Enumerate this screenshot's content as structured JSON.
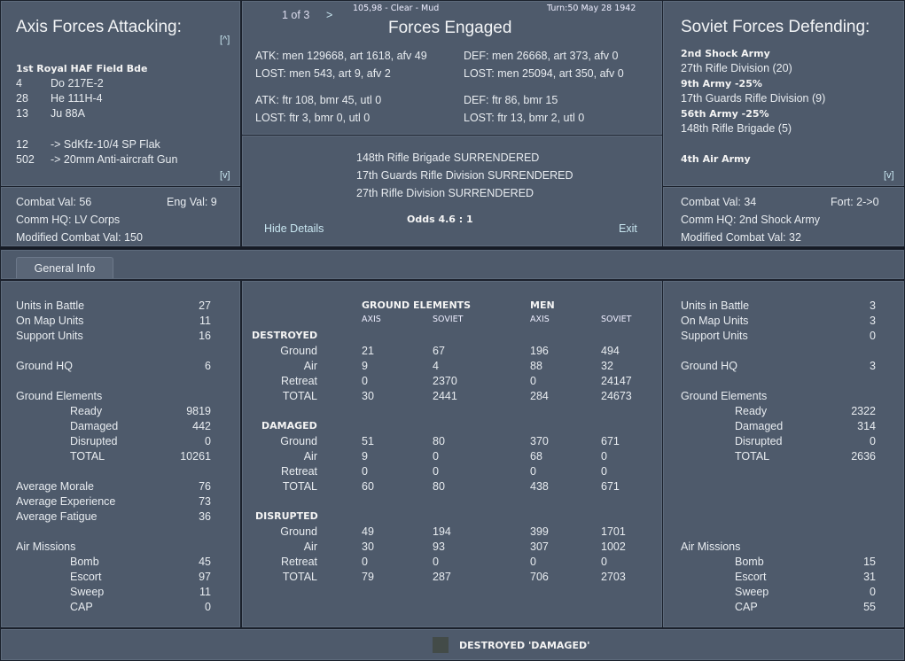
{
  "header": {
    "page": "1 of 3",
    "next": ">",
    "location": "105,98 - Clear - Mud",
    "turn": "Turn:50  May 28 1942",
    "title": "Forces Engaged"
  },
  "attacker": {
    "title": "Axis Forces Attacking:",
    "scroll_up": "[^]",
    "scroll_down": "[v]",
    "unit": "1st Royal HAF Field Bde",
    "elements": [
      [
        "4",
        "Do 217E-2"
      ],
      [
        "28",
        "He 111H-4"
      ],
      [
        "13",
        "Ju 88A"
      ],
      [
        "12",
        "-> SdKfz-10/4 SP Flak"
      ],
      [
        "502",
        "-> 20mm Anti-aircraft Gun"
      ]
    ],
    "combat_val": "Combat Val: 56",
    "eng_val": "Eng Val: 9",
    "comm_hq": "Comm HQ: LV Corps",
    "modified": "Modified Combat Val: 150"
  },
  "defender": {
    "title": "Soviet Forces Defending:",
    "scroll_down": "[v]",
    "lines": [
      [
        "2nd Shock Army",
        true
      ],
      [
        "27th Rifle Division (20)",
        false
      ],
      [
        "9th Army  -25%",
        true
      ],
      [
        "17th Guards Rifle Division (9)",
        false
      ],
      [
        "56th Army  -25%",
        true
      ],
      [
        "148th Rifle Brigade (5)",
        false
      ],
      [
        "",
        false
      ],
      [
        "4th Air Army",
        true
      ]
    ],
    "combat_val": "Combat Val: 34",
    "fort": "Fort: 2->0",
    "comm_hq": "Comm HQ: 2nd Shock Army",
    "modified": "Modified Combat Val: 32"
  },
  "engaged": {
    "atk_ground": "ATK: men 129668, art 1618, afv 49",
    "atk_ground_lost": "LOST: men 543, art 9, afv 2",
    "def_ground": "DEF: men 26668, art 373, afv 0",
    "def_ground_lost": "LOST: men 25094, art 350, afv 0",
    "atk_air": "ATK: ftr 108, bmr 45, utl 0",
    "atk_air_lost": "LOST: ftr 3, bmr 0, utl 0",
    "def_air": "DEF: ftr 86, bmr 15",
    "def_air_lost": "LOST: ftr 13, bmr 2, utl 0",
    "messages": [
      "148th Rifle Brigade SURRENDERED",
      "17th Guards Rifle Division SURRENDERED",
      "27th Rifle Division SURRENDERED"
    ],
    "odds": "Odds 4.6 : 1",
    "hide": "Hide Details",
    "exit": "Exit"
  },
  "tab": "General Info",
  "left_stats": [
    [
      "Units in Battle",
      "27",
      0
    ],
    [
      "On Map Units",
      "11",
      0
    ],
    [
      "Support Units",
      "16",
      0
    ],
    null,
    [
      "Ground HQ",
      "6",
      0
    ],
    null,
    [
      "Ground Elements",
      "",
      0
    ],
    [
      "Ready",
      "9819",
      1
    ],
    [
      "Damaged",
      "442",
      1
    ],
    [
      "Disrupted",
      "0",
      1
    ],
    [
      "TOTAL",
      "10261",
      1
    ],
    null,
    [
      "Average Morale",
      "76",
      0
    ],
    [
      "Average Experience",
      "73",
      0
    ],
    [
      "Average Fatigue",
      "36",
      0
    ],
    null,
    [
      "Air Missions",
      "",
      0
    ],
    [
      "Bomb",
      "45",
      1
    ],
    [
      "Escort",
      "97",
      1
    ],
    [
      "Sweep",
      "11",
      1
    ],
    [
      "CAP",
      "0",
      1
    ]
  ],
  "right_stats": [
    [
      "Units in Battle",
      "3",
      0
    ],
    [
      "On Map Units",
      "3",
      0
    ],
    [
      "Support Units",
      "0",
      0
    ],
    null,
    [
      "Ground HQ",
      "3",
      0
    ],
    null,
    [
      "Ground Elements",
      "",
      0
    ],
    [
      "Ready",
      "2322",
      1
    ],
    [
      "Damaged",
      "314",
      1
    ],
    [
      "Disrupted",
      "0",
      1
    ],
    [
      "TOTAL",
      "2636",
      1
    ],
    null,
    null,
    null,
    null,
    null,
    [
      "Air Missions",
      "",
      0
    ],
    [
      "Bomb",
      "15",
      1
    ],
    [
      "Escort",
      "31",
      1
    ],
    [
      "Sweep",
      "0",
      1
    ],
    [
      "CAP",
      "55",
      1
    ]
  ],
  "table": {
    "group_headers": [
      "GROUND ELEMENTS",
      "MEN"
    ],
    "columns": [
      "AXIS",
      "SOVIET",
      "AXIS",
      "SOVIET"
    ],
    "sections": [
      {
        "name": "DESTROYED",
        "rows": [
          [
            "Ground",
            "21",
            "67",
            "196",
            "494"
          ],
          [
            "Air",
            "9",
            "4",
            "88",
            "32"
          ],
          [
            "Retreat",
            "0",
            "2370",
            "0",
            "24147"
          ],
          [
            "TOTAL",
            "30",
            "2441",
            "284",
            "24673"
          ]
        ]
      },
      {
        "name": "DAMAGED",
        "rows": [
          [
            "Ground",
            "51",
            "80",
            "370",
            "671"
          ],
          [
            "Air",
            "9",
            "0",
            "68",
            "0"
          ],
          [
            "Retreat",
            "0",
            "0",
            "0",
            "0"
          ],
          [
            "TOTAL",
            "60",
            "80",
            "438",
            "671"
          ]
        ]
      },
      {
        "name": "DISRUPTED",
        "rows": [
          [
            "Ground",
            "49",
            "194",
            "399",
            "1701"
          ],
          [
            "Air",
            "30",
            "93",
            "307",
            "1002"
          ],
          [
            "Retreat",
            "0",
            "0",
            "0",
            "0"
          ],
          [
            "TOTAL",
            "79",
            "287",
            "706",
            "2703"
          ]
        ]
      }
    ]
  },
  "footer": {
    "legend": "DESTROYED 'DAMAGED'",
    "swatch_color": "#434b48"
  }
}
